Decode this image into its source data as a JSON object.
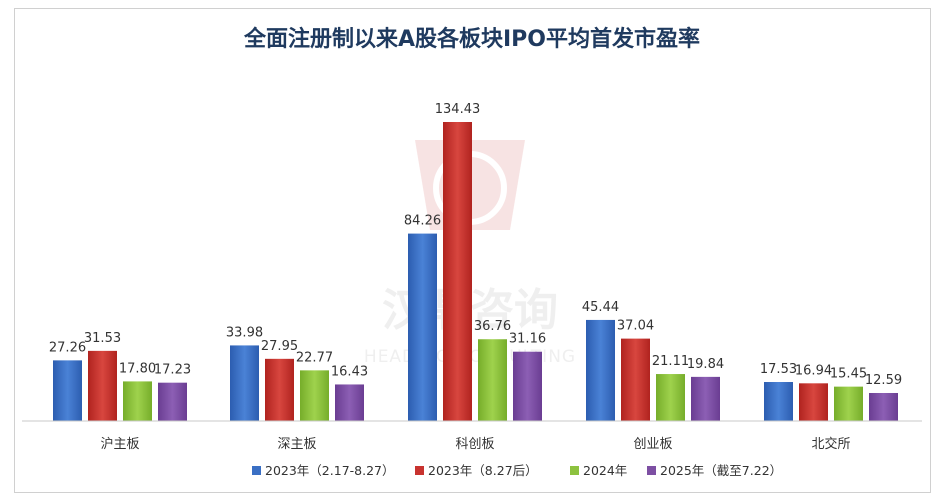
{
  "chart_data": {
    "type": "bar",
    "title": "全面注册制以来A股各板块IPO平均首发市盈率",
    "categories": [
      "沪主板",
      "深主板",
      "科创板",
      "创业板",
      "北交所"
    ],
    "series": [
      {
        "name": "2023年（2.17-8.27）",
        "color": "#3a6fc4",
        "values": [
          27.26,
          33.98,
          84.26,
          45.44,
          17.53
        ]
      },
      {
        "name": "2023年（8.27后）",
        "color": "#c8332f",
        "values": [
          31.53,
          27.95,
          134.43,
          37.04,
          16.94
        ]
      },
      {
        "name": "2024年",
        "color": "#8dc23f",
        "values": [
          17.8,
          22.77,
          36.76,
          21.11,
          15.45
        ]
      },
      {
        "name": "2025年（截至7.22）",
        "color": "#7d4fa3",
        "values": [
          17.23,
          16.43,
          31.16,
          19.84,
          12.59
        ]
      }
    ],
    "ylim": [
      0,
      140
    ],
    "grid": false,
    "legend_position": "bottom",
    "watermark": {
      "cn": "汉鼎咨询",
      "en": "HEADING CONSULTING"
    }
  }
}
